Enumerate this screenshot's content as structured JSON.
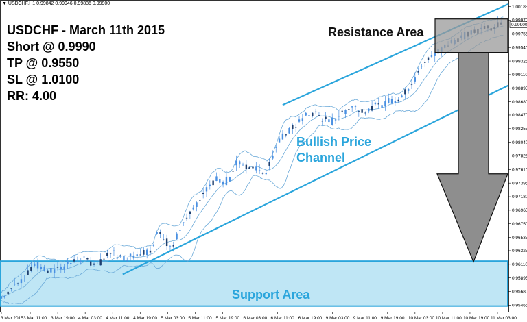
{
  "symbol_line": {
    "symbol": "USDCHF,H1",
    "ohlc": "0.99842 0.99946 0.99836 0.99900"
  },
  "info": {
    "title": "USDCHF - March 11th 2015",
    "short": "Short @ 0.9990",
    "tp": "TP @ 0.9550",
    "sl": "SL @ 1.0100",
    "rr": "RR: 4.00"
  },
  "colors": {
    "candle": "#4a90e2",
    "band": "#6aa9d8",
    "channel": "#2aa5dc",
    "support_fill": "#bfe6f5",
    "resistance_fill": "#9a9a9a",
    "arrow_fill": "#8e8e8e"
  },
  "chart_data": {
    "type": "candlestick",
    "y_ticks": [
      "1.00185",
      "0.99970",
      "0.99755",
      "0.99540",
      "0.99325",
      "0.99110",
      "0.98895",
      "0.98680",
      "0.98470",
      "0.98255",
      "0.98040",
      "0.97825",
      "0.97610",
      "0.97395",
      "0.97180",
      "0.96965",
      "0.96750",
      "0.96535",
      "0.96325",
      "0.96110",
      "0.95895",
      "0.95680",
      "0.95465"
    ],
    "ylim": [
      0.9536,
      1.0029
    ],
    "current_price": "0.99900",
    "x_ticks": [
      "3 Mar 2015",
      "3 Mar 11:00",
      "3 Mar 19:00",
      "4 Mar 03:00",
      "4 Mar 11:00",
      "4 Mar 19:00",
      "5 Mar 03:00",
      "5 Mar 11:00",
      "5 Mar 19:00",
      "6 Mar 03:00",
      "6 Mar 11:00",
      "6 Mar 19:00",
      "9 Mar 03:00",
      "9 Mar 11:00",
      "9 Mar 19:00",
      "10 Mar 03:00",
      "10 Mar 11:00",
      "10 Mar 19:00",
      "11 Mar 03:00"
    ],
    "close_path": [
      [
        0,
        0.956
      ],
      [
        10,
        0.9575
      ],
      [
        20,
        0.959
      ],
      [
        30,
        0.961
      ],
      [
        38,
        0.9605
      ],
      [
        46,
        0.96
      ],
      [
        54,
        0.9607
      ],
      [
        62,
        0.9612
      ],
      [
        70,
        0.962
      ],
      [
        80,
        0.9615
      ],
      [
        88,
        0.9612
      ],
      [
        94,
        0.9622
      ],
      [
        100,
        0.963
      ],
      [
        110,
        0.962
      ],
      [
        120,
        0.9625
      ],
      [
        128,
        0.963
      ],
      [
        136,
        0.9635
      ],
      [
        140,
        0.966
      ],
      [
        145,
        0.9655
      ],
      [
        150,
        0.9645
      ],
      [
        156,
        0.964
      ],
      [
        162,
        0.967
      ],
      [
        170,
        0.969
      ],
      [
        178,
        0.9705
      ],
      [
        184,
        0.9725
      ],
      [
        190,
        0.974
      ],
      [
        196,
        0.9745
      ],
      [
        202,
        0.974
      ],
      [
        208,
        0.9752
      ],
      [
        212,
        0.977
      ],
      [
        218,
        0.977
      ],
      [
        224,
        0.9765
      ],
      [
        230,
        0.9765
      ],
      [
        234,
        0.9755
      ],
      [
        240,
        0.976
      ],
      [
        246,
        0.9785
      ],
      [
        250,
        0.98
      ],
      [
        258,
        0.982
      ],
      [
        266,
        0.983
      ],
      [
        272,
        0.984
      ],
      [
        280,
        0.985
      ],
      [
        286,
        0.9848
      ],
      [
        292,
        0.984
      ],
      [
        298,
        0.9835
      ],
      [
        304,
        0.9845
      ],
      [
        312,
        0.9855
      ],
      [
        318,
        0.986
      ],
      [
        326,
        0.9857
      ],
      [
        332,
        0.9854
      ],
      [
        338,
        0.986
      ],
      [
        346,
        0.9866
      ],
      [
        354,
        0.987
      ],
      [
        362,
        0.9875
      ],
      [
        370,
        0.9895
      ],
      [
        378,
        0.9915
      ],
      [
        386,
        0.9935
      ],
      [
        392,
        0.9945
      ],
      [
        398,
        0.995
      ],
      [
        404,
        0.9958
      ],
      [
        410,
        0.9965
      ],
      [
        416,
        0.997
      ],
      [
        424,
        0.9975
      ],
      [
        432,
        0.998
      ],
      [
        440,
        0.999
      ],
      [
        446,
        0.9985
      ],
      [
        452,
        0.9992
      ],
      [
        456,
        0.999
      ]
    ],
    "channel": {
      "upper": [
        [
          255,
          0.9863
        ],
        [
          455,
          1.0019
        ]
      ],
      "lower": [
        [
          110,
          0.9595
        ],
        [
          455,
          0.989
        ]
      ]
    },
    "resistance_area": {
      "label": "Resistance Area",
      "from": 0.9946,
      "to": 0.9999
    },
    "support_area": {
      "label": "Support Area",
      "from": 0.9545,
      "to": 0.9616
    },
    "channel_label": [
      "Bullish Price",
      "Channel"
    ],
    "trade_arrow": {
      "from": 0.9946,
      "to": 0.9615
    }
  }
}
